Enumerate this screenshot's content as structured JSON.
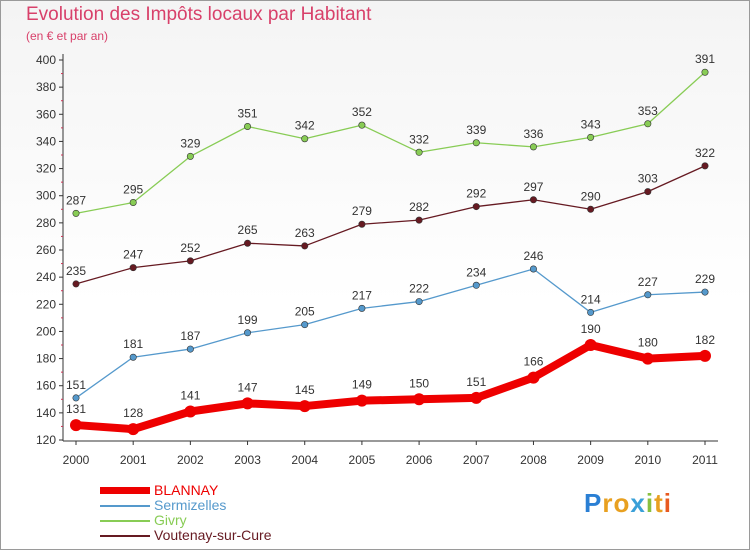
{
  "header": {
    "title": "Evolution des Impôts locaux par Habitant",
    "subtitle": "(en € et par an)"
  },
  "chart_data": {
    "type": "line",
    "title": "Evolution des Impôts locaux par Habitant",
    "subtitle": "(en € et par an)",
    "xlabel": "",
    "ylabel": "",
    "ylim": [
      120,
      400
    ],
    "yticks": [
      120,
      140,
      160,
      180,
      200,
      220,
      240,
      260,
      280,
      300,
      320,
      340,
      360,
      380,
      400
    ],
    "x": [
      "2000",
      "2001",
      "2002",
      "2003",
      "2004",
      "2005",
      "2006",
      "2007",
      "2008",
      "2009",
      "2010",
      "2011"
    ],
    "grid": false,
    "legend_position": "bottom-left",
    "series": [
      {
        "name": "BLANNAY",
        "color": "#ee0000",
        "values": [
          131,
          128,
          141,
          147,
          145,
          149,
          150,
          151,
          166,
          190,
          180,
          182
        ]
      },
      {
        "name": "Sermizelles",
        "color": "#5599cc",
        "values": [
          151,
          181,
          187,
          199,
          205,
          217,
          222,
          234,
          246,
          214,
          227,
          229
        ]
      },
      {
        "name": "Givry",
        "color": "#88cc55",
        "values": [
          287,
          295,
          329,
          351,
          342,
          352,
          332,
          339,
          336,
          343,
          353,
          391
        ]
      },
      {
        "name": "Voutenay-sur-Cure",
        "color": "#661a22",
        "values": [
          235,
          247,
          252,
          265,
          263,
          279,
          282,
          292,
          297,
          290,
          303,
          322
        ]
      }
    ]
  },
  "logo": {
    "letters": [
      "P",
      "r",
      "o",
      "x",
      "i",
      "t",
      "i"
    ],
    "colors": [
      "#2a7fd4",
      "#e8a020",
      "#e8a020",
      "#3aa0d8",
      "#88c040",
      "#e8a020",
      "#e85a20"
    ]
  }
}
